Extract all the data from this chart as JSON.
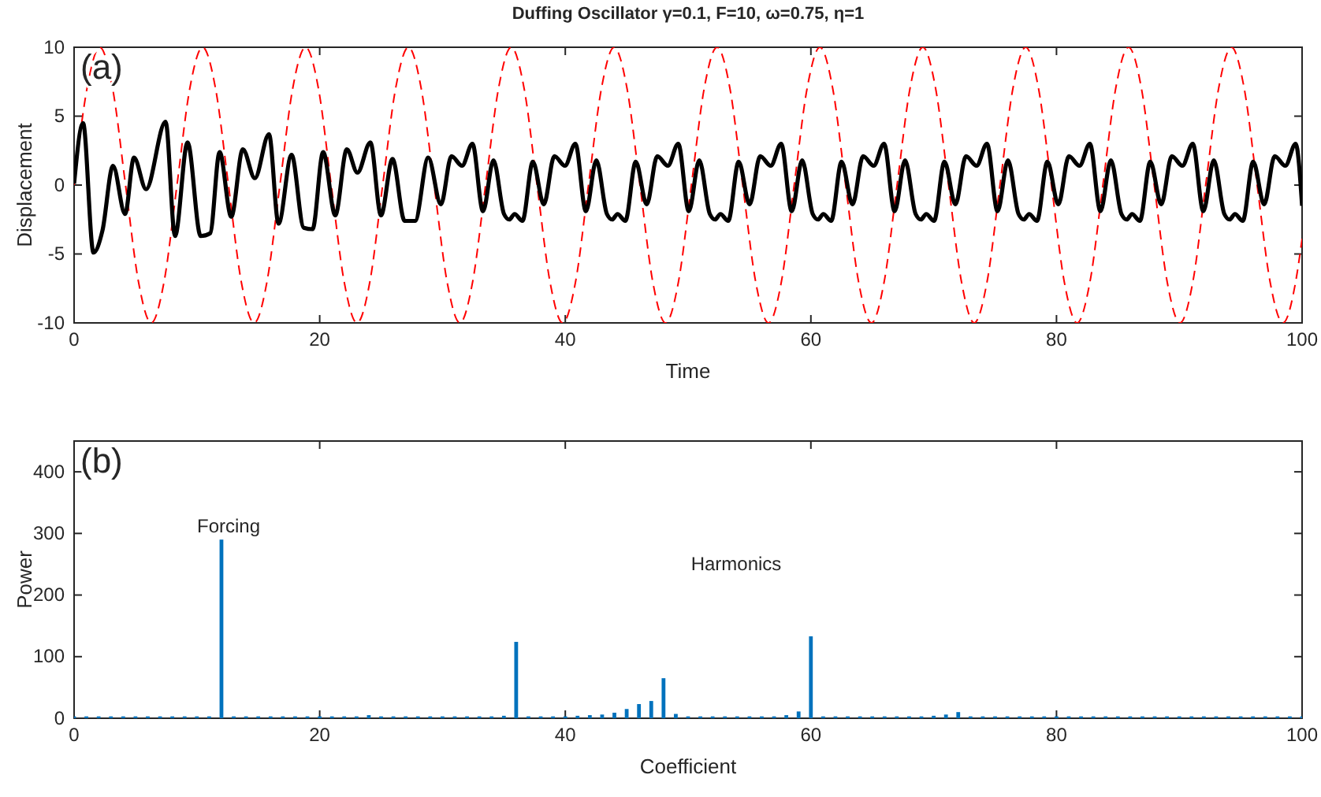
{
  "chart_data": [
    {
      "type": "line",
      "title": "Duffing Oscillator γ=0.1, F=10, ω=0.75, η=1",
      "xlabel": "Time",
      "ylabel": "Displacement",
      "annotations": [
        "(a)"
      ],
      "xlim": [
        0,
        100
      ],
      "xticks": [
        0,
        20,
        40,
        60,
        80,
        100
      ],
      "ylim": [
        -10,
        10
      ],
      "yticks": [
        -10,
        -5,
        0,
        5,
        10
      ],
      "series": [
        {
          "color": "#ff0000",
          "line_style": "dashed",
          "x": [
            0,
            1.05,
            2.09,
            3.14,
            4.19,
            5.24,
            6.28,
            7.33,
            8.38,
            9.42,
            10.47,
            11.52,
            12.57,
            13.61,
            14.66,
            15.71,
            16.76,
            17.8,
            18.85,
            19.9,
            20.94,
            21.99,
            23.04,
            24.09,
            25.13,
            26.18,
            27.23,
            28.27,
            29.32,
            30.37,
            31.42,
            32.46,
            33.51,
            34.56,
            35.6,
            36.65,
            37.7,
            38.75,
            39.79,
            40.84,
            41.89,
            42.94,
            43.98,
            45.03,
            46.08,
            47.12,
            48.17,
            49.22,
            50.27,
            51.31,
            52.36,
            53.41,
            54.45,
            55.5,
            56.55,
            57.6,
            58.64,
            59.69,
            60.74,
            61.78,
            62.83,
            63.88,
            64.93,
            65.97,
            67.02,
            68.07,
            69.12,
            70.16,
            71.21,
            72.26,
            73.3,
            74.35,
            75.4,
            76.45,
            77.49,
            78.54,
            79.59,
            80.63,
            81.68,
            82.73,
            83.78,
            84.82,
            85.87,
            86.92,
            87.96,
            89.01,
            90.06,
            91.11,
            92.15,
            93.2,
            94.25,
            95.29,
            96.34,
            97.39,
            98.44,
            99.48,
            100
          ],
          "values": [
            0,
            7,
            10,
            7,
            0,
            -7,
            -10,
            -7,
            0,
            7,
            10,
            7,
            0,
            -7,
            -10,
            -7,
            0,
            7,
            10,
            7,
            0,
            -7,
            -10,
            -7,
            0,
            7,
            10,
            7,
            0,
            -7,
            -10,
            -7,
            0,
            7,
            10,
            7,
            0,
            -7,
            -10,
            -7,
            0,
            7,
            10,
            7,
            0,
            -7,
            -10,
            -7,
            0,
            7,
            10,
            7,
            0,
            -7,
            -10,
            -7,
            0,
            7,
            10,
            7,
            0,
            -7,
            -10,
            -7,
            0,
            7,
            10,
            7,
            0,
            -7,
            -10,
            -7,
            0,
            7,
            10,
            7,
            0,
            -7,
            -10,
            -7,
            0,
            7,
            10,
            7,
            0,
            -7,
            -10,
            -7,
            0,
            7,
            10,
            7,
            0,
            -7,
            -10,
            -7,
            -3.9
          ]
        },
        {
          "color": "#000000",
          "line_style": "solid",
          "x": [
            0,
            0.73,
            1.58,
            2.31,
            3.17,
            4.15,
            4.88,
            5.86,
            7.45,
            8.22,
            9.24,
            10.31,
            11.08,
            11.85,
            12.8,
            13.74,
            14.72,
            15.87,
            16.65,
            17.71,
            18.7,
            19.42,
            20.28,
            21.27,
            22.21,
            23.07,
            24.13,
            24.99,
            25.93,
            26.92,
            27.77,
            28.84,
            29.87,
            30.73,
            31.59,
            32.44,
            33.3,
            34.15,
            35.01,
            35.44,
            35.87,
            36.51,
            37.36,
            38.25,
            39.11,
            39.97,
            40.82,
            41.68,
            42.53,
            43.39,
            43.82,
            44.25,
            44.89,
            45.74,
            46.63,
            47.49,
            48.35,
            49.2,
            50.06,
            50.91,
            51.77,
            52.2,
            52.63,
            53.27,
            54.12,
            55.01,
            55.87,
            56.73,
            57.58,
            58.44,
            59.29,
            60.15,
            60.58,
            61.01,
            61.65,
            62.5,
            63.39,
            64.25,
            65.11,
            65.96,
            66.82,
            67.67,
            68.53,
            68.96,
            69.39,
            70.03,
            70.88,
            71.77,
            72.63,
            73.49,
            74.34,
            75.2,
            76.05,
            76.91,
            77.34,
            77.77,
            78.41,
            79.26,
            80.15,
            81.01,
            81.87,
            82.72,
            83.58,
            84.43,
            85.29,
            85.72,
            86.15,
            86.79,
            87.64,
            88.53,
            89.39,
            90.25,
            91.1,
            91.96,
            92.81,
            93.67,
            94.1,
            94.53,
            95.17,
            96.02,
            96.91,
            97.77,
            98.63,
            99.48,
            100
          ],
          "values": [
            0.1,
            4.5,
            -4.9,
            -3.3,
            1.4,
            -2.1,
            2.0,
            -0.3,
            4.6,
            -3.7,
            3.1,
            -3.7,
            -3.5,
            2.4,
            -2.3,
            2.6,
            0.5,
            3.7,
            -2.8,
            2.2,
            -3.1,
            -3.2,
            2.4,
            -2.2,
            2.6,
            0.9,
            3.1,
            -2.2,
            1.9,
            -2.6,
            -2.6,
            2.0,
            -1.4,
            2.1,
            1.4,
            3,
            -1.9,
            1.8,
            -2.1,
            -2.5,
            -2.1,
            -2.6,
            1.7,
            -1.4,
            2.1,
            1.4,
            3,
            -1.9,
            1.8,
            -2.1,
            -2.5,
            -2.1,
            -2.6,
            1.7,
            -1.4,
            2.1,
            1.4,
            3,
            -1.9,
            1.8,
            -2.1,
            -2.5,
            -2.1,
            -2.6,
            1.7,
            -1.4,
            2.1,
            1.4,
            3,
            -1.9,
            1.8,
            -2.1,
            -2.5,
            -2.1,
            -2.6,
            1.7,
            -1.4,
            2.1,
            1.4,
            3,
            -1.9,
            1.8,
            -2.1,
            -2.5,
            -2.1,
            -2.6,
            1.7,
            -1.4,
            2.1,
            1.4,
            3,
            -1.9,
            1.8,
            -2.1,
            -2.5,
            -2.1,
            -2.6,
            1.7,
            -1.4,
            2.1,
            1.4,
            3,
            -1.9,
            1.8,
            -2.1,
            -2.5,
            -2.1,
            -2.6,
            1.7,
            -1.4,
            2.1,
            1.4,
            3,
            -1.9,
            1.8,
            -2.1,
            -2.5,
            -2.1,
            -2.6,
            1.7,
            -1.4,
            2.1,
            1.4,
            3,
            -1.5
          ]
        }
      ]
    },
    {
      "type": "bar",
      "xlabel": "Coefficient",
      "ylabel": "Power",
      "annotations": [
        "(b)",
        "Forcing",
        "Harmonics"
      ],
      "xlim": [
        0,
        100
      ],
      "xticks": [
        0,
        20,
        40,
        60,
        80,
        100
      ],
      "ylim": [
        0,
        450
      ],
      "yticks": [
        0,
        100,
        200,
        300,
        400
      ],
      "color": "#0072bd",
      "x": [
        0,
        1,
        2,
        3,
        4,
        5,
        6,
        7,
        8,
        9,
        10,
        11,
        12,
        13,
        14,
        15,
        16,
        17,
        18,
        19,
        20,
        21,
        22,
        23,
        24,
        25,
        26,
        27,
        28,
        29,
        30,
        31,
        32,
        33,
        34,
        35,
        36,
        37,
        38,
        39,
        40,
        41,
        42,
        43,
        44,
        45,
        46,
        47,
        48,
        49,
        50,
        51,
        52,
        53,
        54,
        55,
        56,
        57,
        58,
        59,
        60,
        61,
        62,
        63,
        64,
        65,
        66,
        67,
        68,
        69,
        70,
        71,
        72,
        73,
        74,
        75,
        76,
        77,
        78,
        79,
        80,
        81,
        82,
        83,
        84,
        85,
        86,
        87,
        88,
        89,
        90,
        91,
        92,
        93,
        94,
        95,
        96,
        97,
        98,
        99,
        100
      ],
      "values": [
        3,
        3,
        3,
        3,
        3,
        3,
        3,
        3,
        3,
        3,
        3,
        3,
        290,
        3,
        3,
        3,
        3,
        3,
        3,
        3,
        3,
        3,
        3,
        3,
        5,
        3,
        3,
        3,
        3,
        3,
        3,
        3,
        3,
        3,
        3,
        4,
        124,
        3,
        3,
        3,
        3,
        4,
        5,
        6,
        9,
        15,
        23,
        28,
        65,
        7,
        3,
        3,
        3,
        3,
        3,
        3,
        3,
        3,
        5,
        11,
        133,
        3,
        3,
        3,
        3,
        3,
        3,
        3,
        3,
        3,
        4,
        6,
        10,
        3,
        3,
        3,
        3,
        3,
        3,
        3,
        3,
        3,
        3,
        3,
        3,
        3,
        3,
        3,
        3,
        3,
        3,
        3,
        3,
        3,
        3,
        3,
        3,
        3,
        3,
        3,
        3
      ]
    }
  ]
}
